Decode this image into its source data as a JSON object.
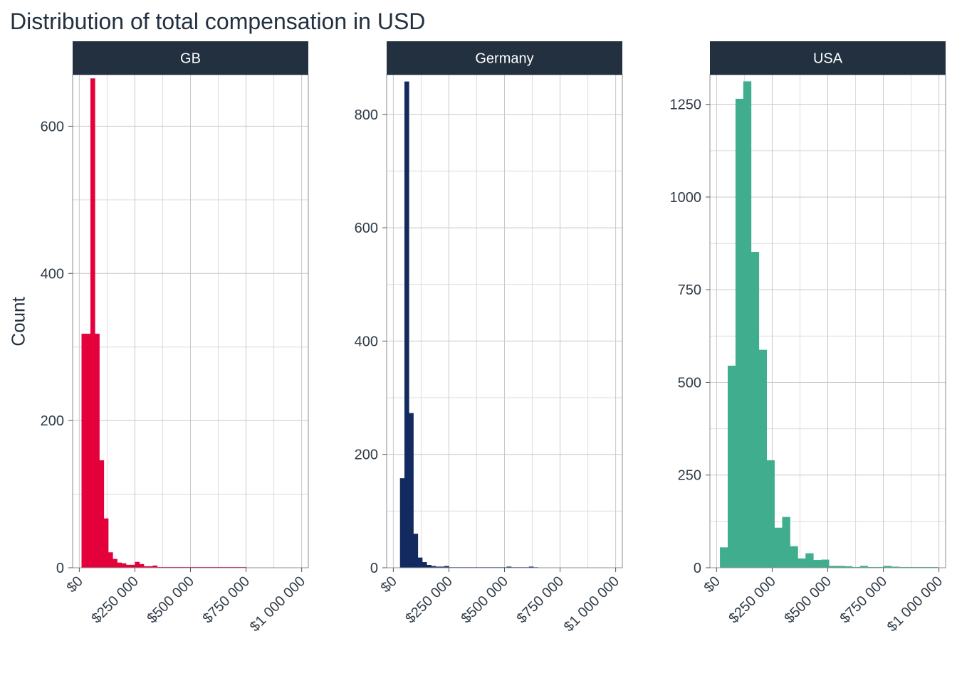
{
  "title": "Distribution of total compensation in USD",
  "ylabel": "Count",
  "chart_data": [
    {
      "type": "bar",
      "panel": "GB",
      "color": "#E4003B",
      "bin_width": 20000,
      "x_ticks": [
        0,
        250000,
        500000,
        750000,
        1000000
      ],
      "x_tick_labels": [
        "$0",
        "$250 000",
        "$500 000",
        "$750 000",
        "$1 000 000"
      ],
      "y_ticks": [
        0,
        200,
        400,
        600
      ],
      "ylim": [
        0,
        670
      ],
      "xlim": [
        -30000,
        1030000
      ],
      "bins_start": [
        10000,
        30000,
        50000,
        70000,
        90000,
        110000,
        130000,
        150000,
        170000,
        190000,
        210000,
        230000,
        250000,
        270000,
        290000,
        310000,
        330000,
        350000,
        370000,
        390000,
        410000,
        430000,
        450000,
        470000,
        490000,
        510000,
        530000,
        550000,
        570000,
        590000,
        610000,
        630000,
        650000,
        670000,
        690000,
        710000,
        730000
      ],
      "values": [
        318,
        318,
        665,
        318,
        146,
        67,
        21,
        12,
        7,
        6,
        4,
        4,
        8,
        5,
        2,
        2,
        3,
        1,
        1,
        1,
        1,
        1,
        1,
        1,
        1,
        1,
        1,
        1,
        1,
        1,
        1,
        1,
        1,
        1,
        1,
        1,
        1
      ]
    },
    {
      "type": "bar",
      "panel": "Germany",
      "color": "#132A61",
      "bin_width": 20000,
      "x_ticks": [
        0,
        250000,
        500000,
        750000,
        1000000
      ],
      "x_tick_labels": [
        "$0",
        "$250 000",
        "$500 000",
        "$750 000",
        "$1 000 000"
      ],
      "y_ticks": [
        0,
        200,
        400,
        600,
        800
      ],
      "ylim": [
        0,
        870
      ],
      "xlim": [
        -30000,
        1030000
      ],
      "bins_start": [
        30000,
        50000,
        70000,
        90000,
        110000,
        130000,
        150000,
        170000,
        190000,
        210000,
        230000,
        250000,
        270000,
        290000,
        310000,
        330000,
        350000,
        370000,
        390000,
        410000,
        430000,
        450000,
        470000,
        490000,
        510000,
        530000,
        550000,
        570000,
        590000,
        610000,
        630000
      ],
      "values": [
        158,
        858,
        273,
        60,
        18,
        10,
        5,
        3,
        2,
        2,
        3,
        1,
        1,
        1,
        1,
        1,
        1,
        1,
        1,
        1,
        1,
        1,
        1,
        1,
        2,
        1,
        1,
        1,
        1,
        2,
        1
      ]
    },
    {
      "type": "bar",
      "panel": "USA",
      "color": "#40AE8E",
      "bin_width": 35000,
      "x_ticks": [
        0,
        250000,
        500000,
        750000,
        1000000
      ],
      "x_tick_labels": [
        "$0",
        "$250 000",
        "$500 000",
        "$750 000",
        "$1 000 000"
      ],
      "y_ticks": [
        0,
        250,
        500,
        750,
        1000,
        1250
      ],
      "ylim": [
        0,
        1330
      ],
      "xlim": [
        -30000,
        1030000
      ],
      "bins_start": [
        15000,
        50000,
        85000,
        120000,
        155000,
        190000,
        225000,
        260000,
        295000,
        330000,
        365000,
        400000,
        435000,
        470000,
        505000,
        540000,
        575000,
        610000,
        645000,
        680000,
        715000,
        750000,
        785000,
        820000,
        855000,
        890000,
        925000,
        960000
      ],
      "values": [
        55,
        545,
        1265,
        1312,
        852,
        588,
        290,
        108,
        137,
        58,
        25,
        39,
        21,
        22,
        5,
        5,
        4,
        2,
        5,
        2,
        2,
        5,
        3,
        2,
        2,
        2,
        2,
        2
      ]
    }
  ]
}
